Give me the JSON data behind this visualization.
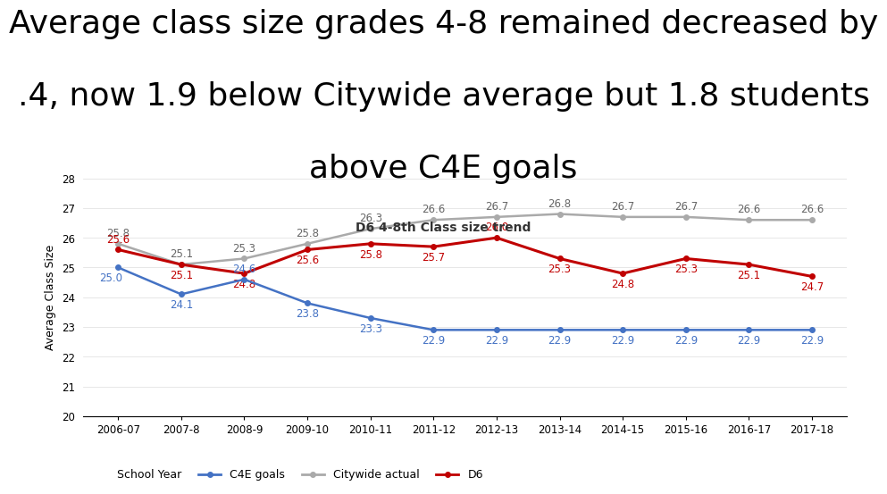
{
  "title_line1": "Average class size grades 4-8 remained decreased by",
  "title_line2": ".4, now 1.9 below Citywide average but 1.8 students",
  "title_line3": "above C4E goals",
  "subtitle": "D6 4-8th Class size trend",
  "xlabel": "School Year",
  "ylabel": "Average Class Size",
  "years": [
    "2006-07",
    "2007-8",
    "2008-9",
    "2009-10",
    "2010-11",
    "2011-12",
    "2012-13",
    "2013-14",
    "2014-15",
    "2015-16",
    "2016-17",
    "2017-18"
  ],
  "c4e_goals": [
    25.0,
    24.1,
    24.6,
    23.8,
    23.3,
    22.9,
    22.9,
    22.9,
    22.9,
    22.9,
    22.9,
    22.9
  ],
  "citywide_actual": [
    25.8,
    25.1,
    25.3,
    25.8,
    26.3,
    26.6,
    26.7,
    26.8,
    26.7,
    26.7,
    26.6,
    26.6
  ],
  "d6": [
    25.6,
    25.1,
    24.8,
    25.6,
    25.8,
    25.7,
    26.0,
    25.3,
    24.8,
    25.3,
    25.1,
    24.7
  ],
  "c4e_color": "#4472C4",
  "citywide_color": "#AAAAAA",
  "d6_color": "#C00000",
  "ylim": [
    20,
    28
  ],
  "yticks": [
    20,
    21,
    22,
    23,
    24,
    25,
    26,
    27,
    28
  ],
  "title_fontsize": 26,
  "subtitle_fontsize": 10,
  "label_fontsize": 8.5,
  "axis_label_fontsize": 9,
  "legend_fontsize": 9,
  "tick_fontsize": 8.5,
  "background_color": "#FFFFFF"
}
